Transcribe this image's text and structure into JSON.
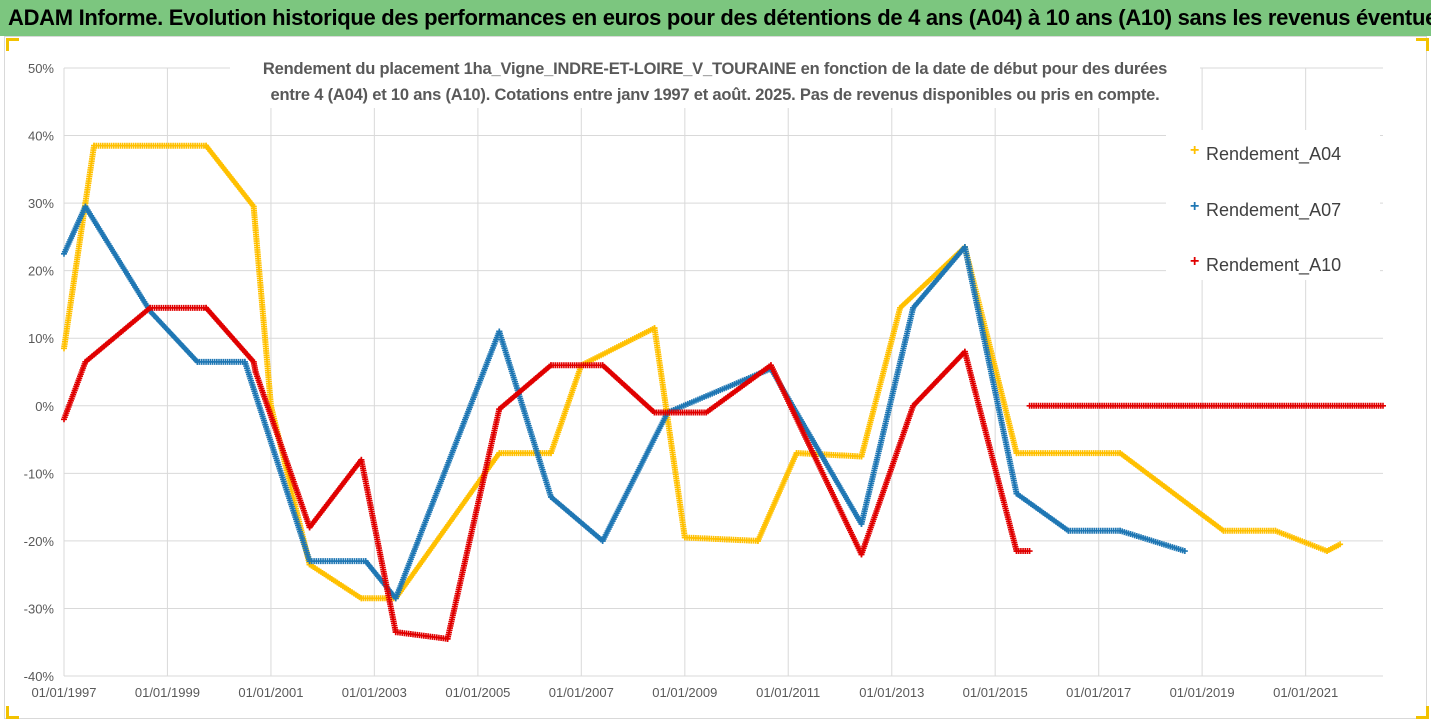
{
  "header": {
    "title": "ADAM Informe. Evolution historique des performances en euros pour des détentions de 4 ans (A04) à 10 ans (A10) sans les revenus éventuels"
  },
  "chart_data": {
    "type": "scatter",
    "title": "",
    "subtitle_line1": "Rendement du placement 1ha_Vigne_INDRE-ET-LOIRE_V_TOURAINE en fonction de la date de début pour des durées",
    "subtitle_line2": "entre 4 (A04) et 10 ans (A10). Cotations entre janv 1997 et août. 2025. Pas de revenus disponibles ou pris en compte.",
    "xlabel": "",
    "ylabel": "",
    "x_range": [
      "1997-01-01",
      "2022-07-01"
    ],
    "ylim": [
      -40,
      50
    ],
    "y_ticks": [
      "50%",
      "40%",
      "30%",
      "20%",
      "10%",
      "0%",
      "-10%",
      "-20%",
      "-30%",
      "-40%"
    ],
    "x_ticks": [
      "01/01/1997",
      "01/01/1999",
      "01/01/2001",
      "01/01/2003",
      "01/01/2005",
      "01/01/2007",
      "01/01/2009",
      "01/01/2011",
      "01/01/2013",
      "01/01/2015",
      "01/01/2017",
      "01/01/2019",
      "01/01/2021"
    ],
    "grid": true,
    "legend_position": "right",
    "series": [
      {
        "name": "Rendement_A04",
        "color": "#ffc000",
        "points": [
          [
            "1997-01-01",
            8.5
          ],
          [
            "1997-06-01",
            30
          ],
          [
            "1997-08-01",
            38.5
          ],
          [
            "1999-10-01",
            38.5
          ],
          [
            "2000-09-01",
            29.5
          ],
          [
            "2000-09-15",
            26
          ],
          [
            "2001-01-01",
            0
          ],
          [
            "2001-10-01",
            -23.5
          ],
          [
            "2002-10-01",
            -28.5
          ],
          [
            "2003-06-01",
            -28.5
          ],
          [
            "2005-06-01",
            -7
          ],
          [
            "2006-06-01",
            -7
          ],
          [
            "2007-01-01",
            6
          ],
          [
            "2008-06-01",
            11.5
          ],
          [
            "2009-01-01",
            -19.5
          ],
          [
            "2010-06-01",
            -20
          ],
          [
            "2011-03-01",
            -7
          ],
          [
            "2012-06-01",
            -7.5
          ],
          [
            "2013-03-01",
            14.5
          ],
          [
            "2014-06-01",
            23.5
          ],
          [
            "2015-06-01",
            -7
          ],
          [
            "2017-06-01",
            -7
          ],
          [
            "2019-06-01",
            -18.5
          ],
          [
            "2020-06-01",
            -18.5
          ],
          [
            "2021-06-01",
            -21.5
          ],
          [
            "2021-09-01",
            -20.5
          ]
        ]
      },
      {
        "name": "Rendement_A07",
        "color": "#1f77b4",
        "points": [
          [
            "1997-01-01",
            22.5
          ],
          [
            "1997-06-01",
            29.5
          ],
          [
            "1998-09-01",
            14
          ],
          [
            "1999-08-01",
            6.5
          ],
          [
            "2000-07-01",
            6.5
          ],
          [
            "2001-10-01",
            -23
          ],
          [
            "2002-11-01",
            -23
          ],
          [
            "2003-06-01",
            -28.5
          ],
          [
            "2005-06-01",
            11
          ],
          [
            "2006-06-01",
            -13.5
          ],
          [
            "2007-06-01",
            -20
          ],
          [
            "2008-09-01",
            -1
          ],
          [
            "2010-09-01",
            5.5
          ],
          [
            "2012-06-01",
            -17.5
          ],
          [
            "2013-06-01",
            14.5
          ],
          [
            "2014-06-01",
            23.5
          ],
          [
            "2015-06-01",
            -13
          ],
          [
            "2016-06-01",
            -18.5
          ],
          [
            "2017-06-01",
            -18.5
          ],
          [
            "2018-09-01",
            -21.5
          ]
        ]
      },
      {
        "name": "Rendement_A10",
        "color": "#e00000",
        "points": [
          [
            "1997-01-01",
            -2
          ],
          [
            "1997-06-01",
            6.5
          ],
          [
            "1998-09-01",
            14.5
          ],
          [
            "1999-10-01",
            14.5
          ],
          [
            "2000-09-01",
            6.5
          ],
          [
            "2000-09-15",
            5
          ],
          [
            "2001-10-01",
            -18
          ],
          [
            "2002-10-01",
            -8
          ],
          [
            "2003-06-01",
            -33.5
          ],
          [
            "2004-06-01",
            -34.5
          ],
          [
            "2005-06-01",
            -0.5
          ],
          [
            "2006-06-01",
            6
          ],
          [
            "2007-06-01",
            6
          ],
          [
            "2008-06-01",
            -1
          ],
          [
            "2009-06-01",
            -1
          ],
          [
            "2010-09-01",
            6
          ],
          [
            "2012-06-01",
            -22
          ],
          [
            "2013-06-01",
            0
          ],
          [
            "2014-06-01",
            8
          ],
          [
            "2015-06-01",
            -21.5
          ],
          [
            "2015-09-01",
            -21.5
          ]
        ]
      },
      {
        "name": "Rendement_A10",
        "color": "#e00000",
        "points": [
          [
            "2015-09-01",
            0
          ],
          [
            "2022-07-01",
            0
          ]
        ]
      }
    ]
  },
  "legend": {
    "items": [
      {
        "label": "Rendement_A04",
        "color": "#ffc000"
      },
      {
        "label": "Rendement_A07",
        "color": "#1f77b4"
      },
      {
        "label": "Rendement_A10",
        "color": "#e00000"
      }
    ],
    "marker": "+"
  }
}
